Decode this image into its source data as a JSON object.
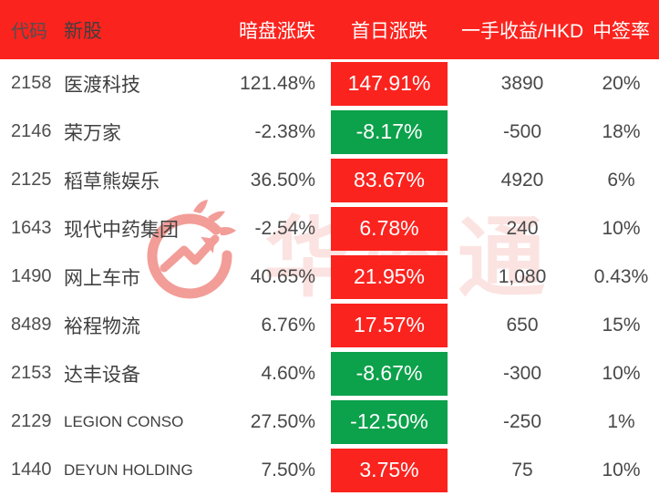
{
  "colors": {
    "rise_red": "#fb231e",
    "fall_green": "#0ca14b",
    "text_gray": "#484848",
    "watermark_red": "#e84e44"
  },
  "watermark": {
    "brand_text": "华盛通",
    "logo": "huashengtong-flame-arrow-logo"
  },
  "header": {
    "columns": [
      "代码",
      "新股",
      "暗盘涨跌",
      "首日涨跌",
      "一手收益/HKD",
      "中签率"
    ]
  },
  "chart_data": {
    "type": "table",
    "title": "",
    "columns": [
      "代码",
      "新股",
      "暗盘涨跌",
      "首日涨跌",
      "一手收益/HKD",
      "中签率"
    ],
    "rows": [
      {
        "code": "2158",
        "name": "医渡科技",
        "grey_market_change": "121.48%",
        "first_day_change": "147.91%",
        "first_day_color": "red",
        "one_lot_profit_hkd": "3890",
        "win_rate": "20%"
      },
      {
        "code": "2146",
        "name": "荣万家",
        "grey_market_change": "-2.38%",
        "first_day_change": "-8.17%",
        "first_day_color": "green",
        "one_lot_profit_hkd": "-500",
        "win_rate": "18%"
      },
      {
        "code": "2125",
        "name": "稻草熊娱乐",
        "grey_market_change": "36.50%",
        "first_day_change": "83.67%",
        "first_day_color": "red",
        "one_lot_profit_hkd": "4920",
        "win_rate": "6%"
      },
      {
        "code": "1643",
        "name": "现代中药集团",
        "grey_market_change": "-2.54%",
        "first_day_change": "6.78%",
        "first_day_color": "red",
        "one_lot_profit_hkd": "240",
        "win_rate": "10%"
      },
      {
        "code": "1490",
        "name": "网上车市",
        "grey_market_change": "40.65%",
        "first_day_change": "21.95%",
        "first_day_color": "red",
        "one_lot_profit_hkd": "1,080",
        "win_rate": "0.43%"
      },
      {
        "code": "8489",
        "name": "裕程物流",
        "grey_market_change": "6.76%",
        "first_day_change": "17.57%",
        "first_day_color": "red",
        "one_lot_profit_hkd": "650",
        "win_rate": "15%"
      },
      {
        "code": "2153",
        "name": "达丰设备",
        "grey_market_change": "4.60%",
        "first_day_change": "-8.67%",
        "first_day_color": "green",
        "one_lot_profit_hkd": "-300",
        "win_rate": "10%"
      },
      {
        "code": "2129",
        "name": "LEGION CONSO",
        "grey_market_change": "27.50%",
        "first_day_change": "-12.50%",
        "first_day_color": "green",
        "one_lot_profit_hkd": "-250",
        "win_rate": "1%"
      },
      {
        "code": "1440",
        "name": "DEYUN HOLDING",
        "grey_market_change": "7.50%",
        "first_day_change": "3.75%",
        "first_day_color": "red",
        "one_lot_profit_hkd": "75",
        "win_rate": "10%"
      }
    ]
  }
}
